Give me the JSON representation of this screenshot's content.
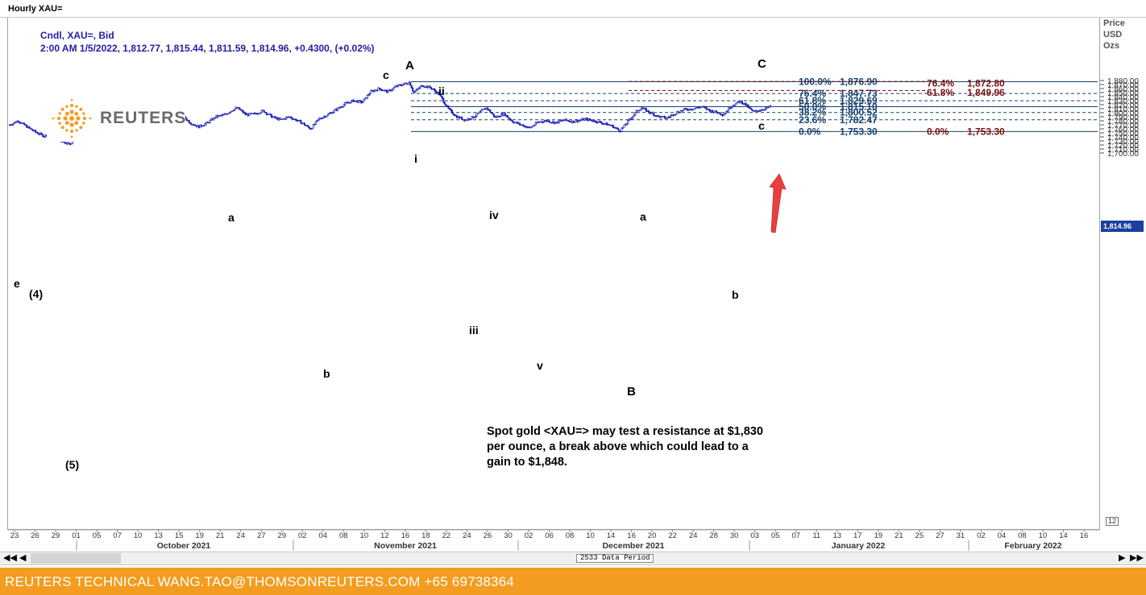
{
  "window": {
    "title": "Hourly XAU="
  },
  "header": {
    "line1": "Cndl, XAU=, Bid",
    "line2": "2:00 AM 1/5/2022, 1,812.77, 1,815.44, 1,811.59, 1,814.96, +0.4300, (+0.02%)"
  },
  "logo": {
    "text": "REUTERS"
  },
  "price_axis_header": [
    "Price",
    "USD",
    "Ozs"
  ],
  "current_price_label": "1,814.96",
  "scale_box": "12",
  "annotation": {
    "lines": [
      "Spot gold <XAU=> may test a resistance at $1,830",
      "per ounce, a break above which could lead to a",
      "gain to $1,848."
    ]
  },
  "period_label": "2533 Data Period",
  "footer": {
    "text": "REUTERS TECHNICAL  WANG.TAO@THOMSONREUTERS.COM  +65 69738364"
  },
  "colors": {
    "candle": "#1e22b4",
    "fib_blue": "#17426e",
    "fib_red": "#7a1010",
    "arrow": "#e84040",
    "footer_bg": "#f39c1f",
    "title_blue": "#1f1fa8"
  },
  "chart_data": {
    "type": "line",
    "series_style": "candlestick",
    "instrument": "XAU=",
    "yaxis": {
      "range": [
        1690,
        1890
      ],
      "ticks": [
        1700,
        1710,
        1720,
        1730,
        1740,
        1750,
        1760,
        1770,
        1780,
        1790,
        1800,
        1810,
        1820,
        1830,
        1840,
        1850,
        1860,
        1870,
        1880
      ],
      "tick_labels": [
        "1,700.00",
        "1,710.00",
        "1,720.00",
        "1,730.00",
        "1,740.00",
        "1,750.00",
        "1,760.00",
        "1,770.00",
        "1,780.00",
        "1,790.00",
        "1,800.00",
        "1,810.00",
        "1,820.00",
        "1,830.00",
        "1,840.00",
        "1,850.00",
        "1,860.00",
        "1,870.00",
        "1,880.00"
      ]
    },
    "xaxis": {
      "day_ticks": [
        "23",
        "26",
        "29",
        "01",
        "05",
        "07",
        "10",
        "13",
        "15",
        "19",
        "21",
        "24",
        "27",
        "29",
        "02",
        "04",
        "08",
        "10",
        "12",
        "16",
        "18",
        "22",
        "24",
        "26",
        "30",
        "02",
        "06",
        "08",
        "10",
        "14",
        "16",
        "20",
        "22",
        "24",
        "28",
        "30",
        "03",
        "05",
        "07",
        "11",
        "13",
        "17",
        "19",
        "21",
        "25",
        "27",
        "31",
        "02",
        "04",
        "08",
        "10",
        "14",
        "16"
      ],
      "months": [
        "October 2021",
        "November 2021",
        "December 2021",
        "January 2022",
        "February 2022"
      ]
    },
    "price_path": [
      {
        "t": 0,
        "p": 1770
      },
      {
        "t": 2,
        "p": 1780
      },
      {
        "t": 4,
        "p": 1765
      },
      {
        "t": 6,
        "p": 1752
      },
      {
        "t": 8,
        "p": 1742
      },
      {
        "t": 10,
        "p": 1752
      },
      {
        "t": 12,
        "p": 1730
      },
      {
        "t": 14,
        "p": 1722
      },
      {
        "t": 16,
        "p": 1748
      },
      {
        "t": 18,
        "p": 1755
      },
      {
        "t": 21,
        "p": 1762
      },
      {
        "t": 24,
        "p": 1750
      },
      {
        "t": 27,
        "p": 1762
      },
      {
        "t": 30,
        "p": 1757
      },
      {
        "t": 33,
        "p": 1768
      },
      {
        "t": 36,
        "p": 1787
      },
      {
        "t": 38,
        "p": 1800
      },
      {
        "t": 40,
        "p": 1795
      },
      {
        "t": 42,
        "p": 1775
      },
      {
        "t": 44,
        "p": 1765
      },
      {
        "t": 46,
        "p": 1775
      },
      {
        "t": 48,
        "p": 1790
      },
      {
        "t": 50,
        "p": 1795
      },
      {
        "t": 52,
        "p": 1808
      },
      {
        "t": 53,
        "p": 1812
      },
      {
        "t": 55,
        "p": 1795
      },
      {
        "t": 57,
        "p": 1797
      },
      {
        "t": 59,
        "p": 1805
      },
      {
        "t": 61,
        "p": 1790
      },
      {
        "t": 63,
        "p": 1782
      },
      {
        "t": 65,
        "p": 1790
      },
      {
        "t": 68,
        "p": 1775
      },
      {
        "t": 70,
        "p": 1760
      },
      {
        "t": 72,
        "p": 1785
      },
      {
        "t": 74,
        "p": 1795
      },
      {
        "t": 76,
        "p": 1808
      },
      {
        "t": 78,
        "p": 1822
      },
      {
        "t": 80,
        "p": 1830
      },
      {
        "t": 82,
        "p": 1826
      },
      {
        "t": 84,
        "p": 1852
      },
      {
        "t": 86,
        "p": 1860
      },
      {
        "t": 88,
        "p": 1852
      },
      {
        "t": 90,
        "p": 1866
      },
      {
        "t": 92,
        "p": 1872
      },
      {
        "t": 93,
        "p": 1876
      },
      {
        "t": 94,
        "p": 1850
      },
      {
        "t": 96,
        "p": 1868
      },
      {
        "t": 98,
        "p": 1862
      },
      {
        "t": 100,
        "p": 1845
      },
      {
        "t": 102,
        "p": 1810
      },
      {
        "t": 104,
        "p": 1790
      },
      {
        "t": 106,
        "p": 1782
      },
      {
        "t": 108,
        "p": 1790
      },
      {
        "t": 110,
        "p": 1806
      },
      {
        "t": 111,
        "p": 1812
      },
      {
        "t": 113,
        "p": 1788
      },
      {
        "t": 115,
        "p": 1798
      },
      {
        "t": 117,
        "p": 1778
      },
      {
        "t": 119,
        "p": 1770
      },
      {
        "t": 121,
        "p": 1762
      },
      {
        "t": 123,
        "p": 1777
      },
      {
        "t": 125,
        "p": 1780
      },
      {
        "t": 127,
        "p": 1775
      },
      {
        "t": 129,
        "p": 1782
      },
      {
        "t": 131,
        "p": 1778
      },
      {
        "t": 134,
        "p": 1784
      },
      {
        "t": 137,
        "p": 1777
      },
      {
        "t": 140,
        "p": 1768
      },
      {
        "t": 142,
        "p": 1755
      },
      {
        "t": 144,
        "p": 1780
      },
      {
        "t": 146,
        "p": 1805
      },
      {
        "t": 147,
        "p": 1812
      },
      {
        "t": 149,
        "p": 1800
      },
      {
        "t": 151,
        "p": 1790
      },
      {
        "t": 153,
        "p": 1787
      },
      {
        "t": 155,
        "p": 1800
      },
      {
        "t": 157,
        "p": 1808
      },
      {
        "t": 159,
        "p": 1810
      },
      {
        "t": 161,
        "p": 1815
      },
      {
        "t": 163,
        "p": 1805
      },
      {
        "t": 165,
        "p": 1800
      },
      {
        "t": 166,
        "p": 1795
      },
      {
        "t": 168,
        "p": 1818
      },
      {
        "t": 170,
        "p": 1828
      },
      {
        "t": 171,
        "p": 1822
      },
      {
        "t": 173,
        "p": 1802
      },
      {
        "t": 175,
        "p": 1808
      },
      {
        "t": 177,
        "p": 1815
      }
    ],
    "fibonacci_blue": [
      {
        "label": "100.0%",
        "value": "1,876.90"
      },
      {
        "label": "76.4%",
        "value": "1,847.73"
      },
      {
        "label": "61.8%",
        "value": "1,829.69"
      },
      {
        "label": "50.0%",
        "value": "1,815.10"
      },
      {
        "label": "38.2%",
        "value": "1,800.52"
      },
      {
        "label": "23.6%",
        "value": "1,782.47"
      },
      {
        "label": "0.0%",
        "value": "1,753.30"
      }
    ],
    "fibonacci_red": [
      {
        "label": "76.4%",
        "value": "1,872.80"
      },
      {
        "label": "61.8%",
        "value": "1,849.96"
      },
      {
        "label": "0.0%",
        "value": "1,753.30"
      }
    ],
    "wave_labels": [
      "(5)",
      "(4)",
      "e",
      "a",
      "b",
      "c",
      "A",
      "i",
      "ii",
      "iii",
      "iv",
      "v",
      "B",
      "a",
      "b",
      "c",
      "C"
    ]
  }
}
